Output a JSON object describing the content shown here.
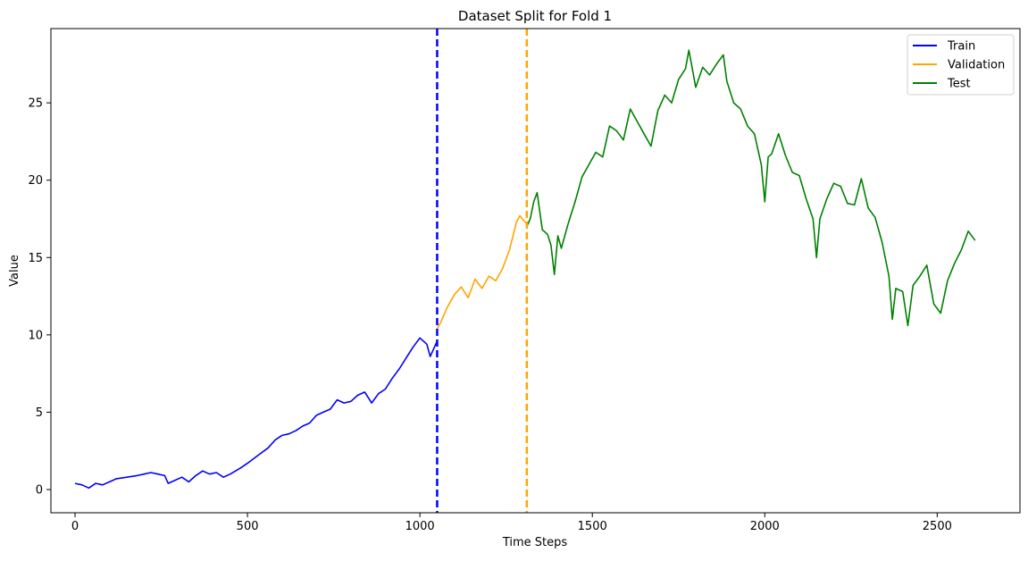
{
  "chart_data": {
    "type": "line",
    "title": "Dataset Split for Fold 1",
    "xlabel": "Time Steps",
    "ylabel": "Value",
    "xlim": [
      -70,
      2740
    ],
    "ylim": [
      -1.5,
      29.8
    ],
    "xticks": [
      0,
      500,
      1000,
      1500,
      2000,
      2500
    ],
    "yticks": [
      0,
      5,
      10,
      15,
      20,
      25
    ],
    "grid": false,
    "legend_position": "top-right",
    "series": [
      {
        "name": "Train",
        "color": "#0000ff",
        "x": [
          0,
          20,
          40,
          60,
          80,
          100,
          120,
          150,
          180,
          200,
          220,
          240,
          260,
          270,
          290,
          310,
          330,
          350,
          370,
          390,
          410,
          430,
          450,
          480,
          500,
          530,
          560,
          580,
          600,
          620,
          640,
          660,
          680,
          700,
          720,
          740,
          760,
          780,
          800,
          820,
          840,
          860,
          880,
          900,
          920,
          940,
          960,
          980,
          1000,
          1020,
          1030,
          1040,
          1050
        ],
        "y": [
          0.4,
          0.3,
          0.1,
          0.4,
          0.3,
          0.5,
          0.7,
          0.8,
          0.9,
          1.0,
          1.1,
          1.0,
          0.9,
          0.4,
          0.6,
          0.8,
          0.5,
          0.9,
          1.2,
          1.0,
          1.1,
          0.8,
          1.0,
          1.4,
          1.7,
          2.2,
          2.7,
          3.2,
          3.5,
          3.6,
          3.8,
          4.1,
          4.3,
          4.8,
          5.0,
          5.2,
          5.8,
          5.6,
          5.7,
          6.1,
          6.3,
          5.6,
          6.2,
          6.5,
          7.2,
          7.8,
          8.5,
          9.2,
          9.8,
          9.4,
          8.6,
          9.1,
          9.6
        ]
      },
      {
        "name": "Validation",
        "color": "#ffa500",
        "x": [
          1050,
          1060,
          1080,
          1100,
          1120,
          1140,
          1160,
          1180,
          1200,
          1220,
          1240,
          1260,
          1270,
          1280,
          1290,
          1300,
          1310
        ],
        "y": [
          10.4,
          10.8,
          11.8,
          12.6,
          13.1,
          12.4,
          13.6,
          13.0,
          13.8,
          13.5,
          14.3,
          15.5,
          16.4,
          17.3,
          17.7,
          17.4,
          17.2
        ]
      },
      {
        "name": "Test",
        "color": "#008000",
        "x": [
          1310,
          1320,
          1330,
          1340,
          1355,
          1370,
          1380,
          1390,
          1400,
          1410,
          1430,
          1450,
          1470,
          1490,
          1510,
          1530,
          1550,
          1570,
          1590,
          1610,
          1630,
          1650,
          1670,
          1690,
          1710,
          1730,
          1750,
          1770,
          1780,
          1800,
          1820,
          1840,
          1860,
          1880,
          1890,
          1910,
          1930,
          1950,
          1970,
          1990,
          2000,
          2010,
          2020,
          2040,
          2060,
          2080,
          2100,
          2120,
          2140,
          2150,
          2160,
          2180,
          2200,
          2220,
          2240,
          2260,
          2280,
          2300,
          2320,
          2340,
          2360,
          2370,
          2380,
          2400,
          2415,
          2430,
          2450,
          2470,
          2490,
          2510,
          2530,
          2550,
          2570,
          2590,
          2610
        ],
        "y": [
          17.0,
          17.5,
          18.6,
          19.2,
          16.8,
          16.5,
          15.8,
          13.9,
          16.4,
          15.6,
          17.2,
          18.6,
          20.2,
          21.0,
          21.8,
          21.5,
          23.5,
          23.2,
          22.6,
          24.6,
          23.8,
          23.0,
          22.2,
          24.5,
          25.5,
          25.0,
          26.5,
          27.2,
          28.4,
          26.0,
          27.3,
          26.8,
          27.5,
          28.1,
          26.4,
          25.0,
          24.6,
          23.5,
          23.0,
          21.0,
          18.6,
          21.5,
          21.7,
          23.0,
          21.6,
          20.5,
          20.3,
          18.8,
          17.5,
          15.0,
          17.5,
          18.8,
          19.8,
          19.6,
          18.5,
          18.4,
          20.1,
          18.2,
          17.6,
          16.0,
          13.8,
          11.0,
          13.0,
          12.8,
          10.6,
          13.2,
          13.8,
          14.5,
          12.0,
          11.4,
          13.5,
          14.6,
          15.5,
          16.7,
          16.1
        ]
      }
    ],
    "vlines": [
      {
        "x": 1050,
        "color": "#0000ff",
        "style": "dashed"
      },
      {
        "x": 1310,
        "color": "#ffa500",
        "style": "dashed"
      }
    ]
  }
}
